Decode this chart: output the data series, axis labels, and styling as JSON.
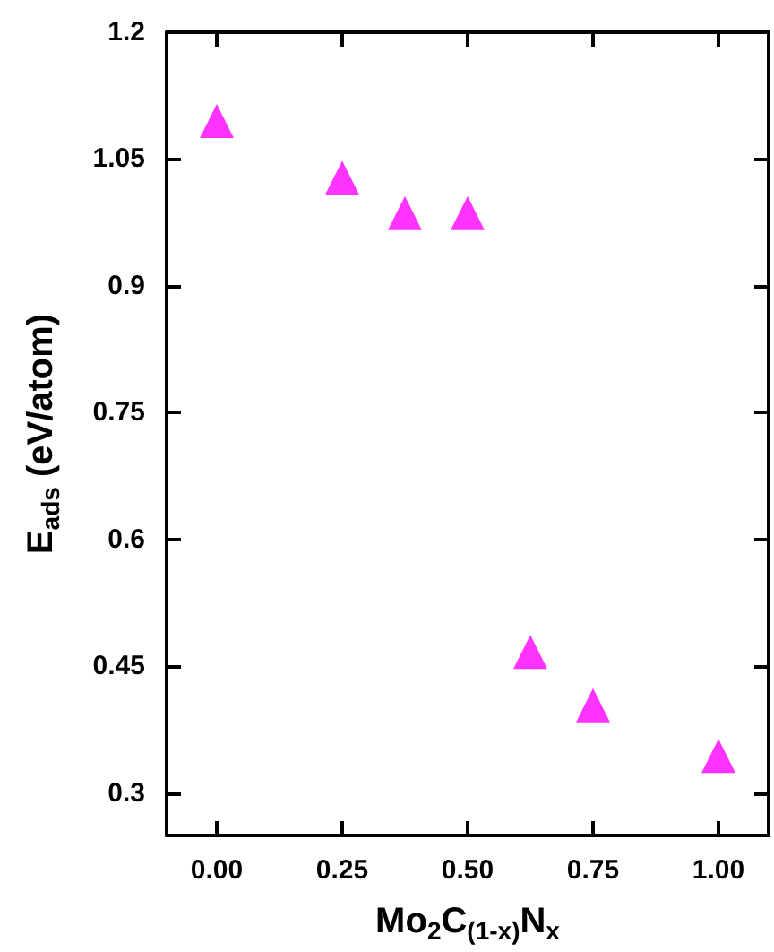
{
  "chart_data": {
    "type": "scatter",
    "xlabel": "Mo$_{2}$C$_{(1-x)}$N$_{x}$",
    "ylabel": "E$_{ads}$ (eV/atom)",
    "x": [
      0,
      0.25,
      0.375,
      0.5,
      0.625,
      0.75,
      1.0
    ],
    "series": [
      {
        "color": "#ff00ff",
        "values": [
          1.095,
          1.028,
          0.986,
          0.986,
          0.467,
          0.404,
          0.344
        ]
      }
    ],
    "xlim": [
      -0.1,
      1.1
    ],
    "xticks": [
      {
        "value": 0,
        "label": "0.00"
      },
      {
        "value": 0.25,
        "label": "0.25"
      },
      {
        "value": 0.5,
        "label": "0.50"
      },
      {
        "value": 0.75,
        "label": "0.75"
      },
      {
        "value": 1,
        "label": "1.00"
      }
    ],
    "ylim": [
      0.25,
      1.2
    ],
    "yticks": [
      0.3,
      0.45,
      0.6,
      0.75,
      0.9,
      1.05,
      1.2
    ],
    "marker": "triangle"
  }
}
